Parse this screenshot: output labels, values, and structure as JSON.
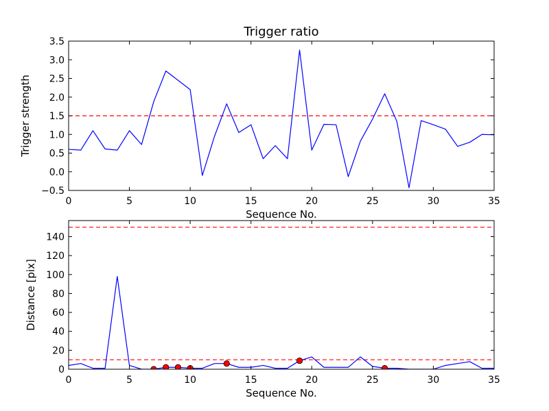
{
  "chart_data": [
    {
      "type": "line",
      "title": "Trigger ratio",
      "xlabel": "Sequence No.",
      "ylabel": "Trigger strength",
      "xlim": [
        0,
        35
      ],
      "ylim": [
        -0.5,
        3.5
      ],
      "xticks": [
        0,
        5,
        10,
        15,
        20,
        25,
        30,
        35
      ],
      "xtick_labels": [
        "0",
        "5",
        "10",
        "15",
        "20",
        "25",
        "30",
        "35"
      ],
      "yticks": [
        -0.5,
        0.0,
        0.5,
        1.0,
        1.5,
        2.0,
        2.5,
        3.0,
        3.5
      ],
      "ytick_labels": [
        "−0.5",
        "0.0",
        "0.5",
        "1.0",
        "1.5",
        "2.0",
        "2.5",
        "3.0",
        "3.5"
      ],
      "grid": false,
      "series": [
        {
          "color": "#0000ff",
          "x": [
            0,
            1,
            2,
            3,
            4,
            5,
            6,
            7,
            8,
            9,
            10,
            11,
            12,
            13,
            14,
            15,
            16,
            17,
            18,
            19,
            20,
            21,
            22,
            23,
            24,
            25,
            26,
            27,
            28,
            29,
            30,
            31,
            32,
            33,
            34,
            35
          ],
          "values": [
            0.6,
            0.58,
            1.1,
            0.61,
            0.58,
            1.1,
            0.73,
            1.88,
            2.7,
            2.45,
            2.2,
            -0.1,
            0.95,
            1.82,
            1.05,
            1.26,
            0.35,
            0.7,
            0.35,
            3.26,
            0.58,
            1.27,
            1.26,
            -0.13,
            0.82,
            1.41,
            2.09,
            1.35,
            -0.43,
            1.37,
            1.26,
            1.14,
            0.68,
            0.79,
            1.0,
            0.99
          ]
        }
      ],
      "hlines": [
        {
          "y": 1.5,
          "color": "#ff0000",
          "style": "dashed"
        }
      ]
    },
    {
      "type": "line",
      "title": "",
      "xlabel": "Sequence No.",
      "ylabel": "Distance [pix]",
      "xlim": [
        0,
        35
      ],
      "ylim": [
        0,
        157
      ],
      "xticks": [
        0,
        5,
        10,
        15,
        20,
        25,
        30,
        35
      ],
      "xtick_labels": [
        "0",
        "5",
        "10",
        "15",
        "20",
        "25",
        "30",
        "35"
      ],
      "yticks": [
        0,
        20,
        40,
        60,
        80,
        100,
        120,
        140
      ],
      "ytick_labels": [
        "0",
        "20",
        "40",
        "60",
        "80",
        "100",
        "120",
        "140"
      ],
      "grid": false,
      "series": [
        {
          "color": "#0000ff",
          "x": [
            0,
            1,
            2,
            3,
            4,
            5,
            6,
            7,
            8,
            9,
            10,
            11,
            12,
            13,
            14,
            15,
            16,
            17,
            18,
            19,
            20,
            21,
            22,
            23,
            24,
            25,
            26,
            27,
            28,
            29,
            30,
            31,
            32,
            33,
            34,
            35
          ],
          "values": [
            4,
            6,
            1,
            1,
            98,
            4,
            0,
            0,
            2,
            2,
            1,
            1,
            6,
            6,
            2,
            2,
            4,
            1,
            1,
            9,
            13,
            2,
            2,
            2,
            13,
            3,
            1,
            1,
            0,
            0,
            0,
            4,
            6,
            8,
            1,
            1
          ]
        }
      ],
      "markers": {
        "color": "#ff0000",
        "x": [
          7,
          8,
          9,
          10,
          13,
          19,
          26
        ],
        "values": [
          0,
          2,
          2,
          1,
          6,
          9,
          1
        ]
      },
      "hlines": [
        {
          "y": 150,
          "color": "#ff0000",
          "style": "dashed"
        },
        {
          "y": 10,
          "color": "#ff0000",
          "style": "dashed"
        }
      ]
    }
  ]
}
